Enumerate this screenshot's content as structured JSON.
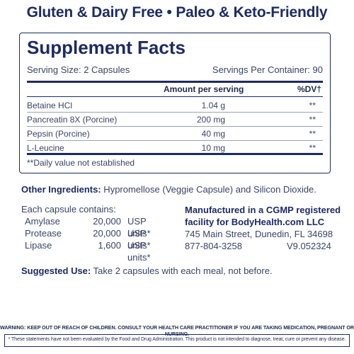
{
  "headline": "Gluten & Dairy Free • Paleo & Keto-Friendly",
  "facts": {
    "title": "Supplement Facts",
    "serving_size": "Serving Size: 2 Capsules",
    "servings_per_container": "Servings Per Container: 90",
    "col_amount": "Amount per serving",
    "col_dv": "%DV†",
    "rows": [
      {
        "name": "Betaine HCl",
        "amount": "1.04 g",
        "dv": "**"
      },
      {
        "name": "Pancreatin 8X (Porcine)",
        "amount": "200 mg",
        "dv": "**"
      },
      {
        "name": "Pepsin (Porcine)",
        "amount": "40 mg",
        "dv": "**"
      },
      {
        "name": "L-Leucine",
        "amount": "10 mg",
        "dv": "**"
      }
    ],
    "footnote": "**Daily value not established"
  },
  "other_ingredients": {
    "label": "Other Ingredients:",
    "text": " Hypromellose (Veggie Capsule) and Silicon Dioxide."
  },
  "capsule": {
    "heading": "Each capsule contains:",
    "enzymes": [
      {
        "name": "Amylase",
        "value": "20,000",
        "unit": "USP units*"
      },
      {
        "name": "Protease",
        "value": "20,000",
        "unit": "USP units*"
      },
      {
        "name": "Lipase",
        "value": "1,600",
        "unit": "USP units*"
      }
    ]
  },
  "manufacturer": {
    "line1": "Manufactured in a CGMP registered",
    "line2": "facility for BodyHealth.com LLC",
    "address": "745 Main Street, Dunedin, FL 34698",
    "phone": "877-804-3258",
    "version": "V9.052324"
  },
  "suggested_use": {
    "label": "Suggested Use:",
    "text": " Take 2 capsules with each meal, not before."
  },
  "warning": "WARNING: KEEP OUT OF REACH OF CHILDREN. CONSULT YOUR HEALTH CARE PRACTITIONER IF YOU ARE TAKING MEDICATION, PREGNANT OR NURSING.",
  "disclaimer": "* These statements have not been evaluated by the Food and Drug Administration. This product is not intended to diagnose, treat, cure or prevent any disease."
}
